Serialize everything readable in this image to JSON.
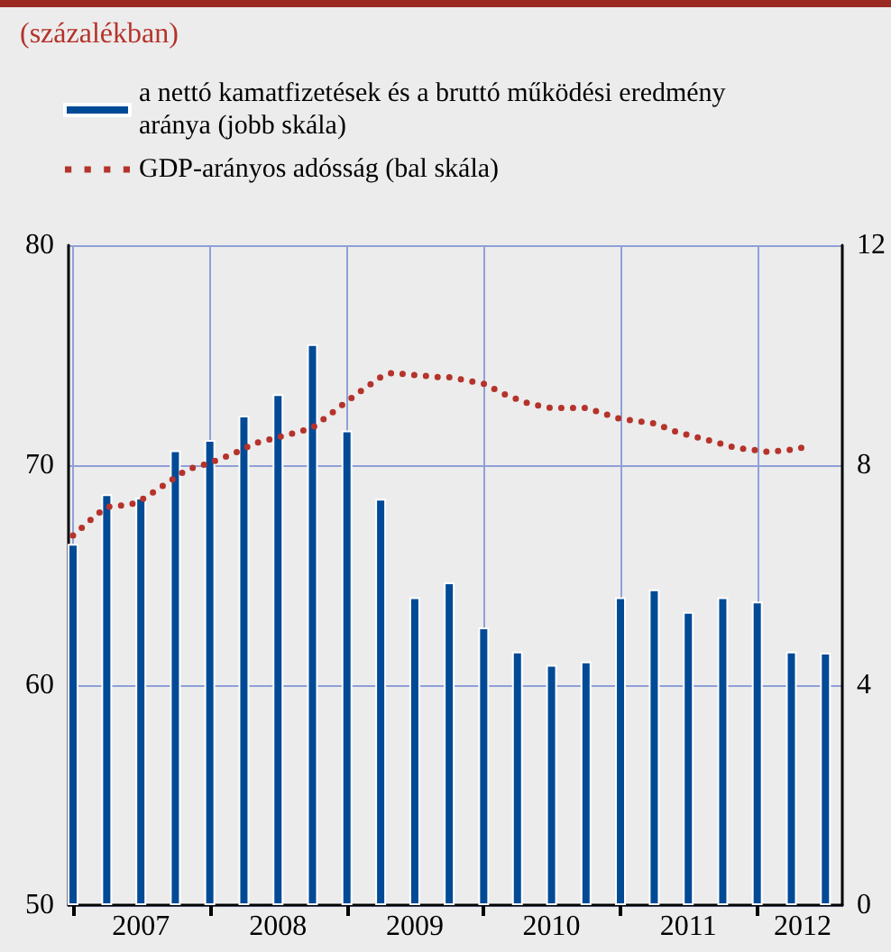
{
  "chart_data": {
    "type": "bar",
    "title": "(százalékban)",
    "x": [
      "2007-01",
      "2007-04",
      "2007-07",
      "2007-10",
      "2008-01",
      "2008-04",
      "2008-07",
      "2008-10",
      "2009-01",
      "2009-04",
      "2009-07",
      "2009-10",
      "2010-01",
      "2010-04",
      "2010-07",
      "2010-10",
      "2011-01",
      "2011-04",
      "2011-07",
      "2011-10",
      "2012-01",
      "2012-04",
      "2012-07"
    ],
    "series": [
      {
        "name": "a nettó kamatfizetések és a bruttó működési eredmény aránya (jobb skála)",
        "axis": "y2",
        "color": "#004a96",
        "values": [
          6.57,
          7.47,
          7.41,
          8.27,
          8.46,
          8.9,
          9.29,
          10.2,
          8.63,
          7.39,
          5.6,
          5.87,
          5.05,
          4.61,
          4.37,
          4.43,
          5.6,
          5.74,
          5.33,
          5.6,
          5.52,
          4.61,
          4.59
        ]
      },
      {
        "name": "GDP-arányos adósság (bal skála)",
        "type": "line",
        "line_style": "dotted",
        "color": "#b5332b",
        "x": [
          "2007-01",
          "2007-03",
          "2007-04",
          "2007-06",
          "2007-07",
          "2007-09",
          "2007-11",
          "2008-01",
          "2008-03",
          "2008-05",
          "2008-08",
          "2008-10",
          "2008-12",
          "2009-02",
          "2009-04",
          "2009-05",
          "2009-09",
          "2009-10",
          "2010-01",
          "2010-03",
          "2010-05",
          "2010-07",
          "2010-10",
          "2011-01",
          "2011-04",
          "2011-06",
          "2011-09",
          "2011-11",
          "2012-02",
          "2012-04",
          "2012-05"
        ],
        "values": [
          66.8,
          67.7,
          68.1,
          68.2,
          68.4,
          69.1,
          69.8,
          70.1,
          70.5,
          71.0,
          71.4,
          71.7,
          72.5,
          73.3,
          74.0,
          74.2,
          74.0,
          74.0,
          73.7,
          73.2,
          72.8,
          72.6,
          72.6,
          72.1,
          71.9,
          71.5,
          71.1,
          70.8,
          70.6,
          70.7,
          70.8
        ]
      }
    ],
    "xlim": [
      "2006-12-20",
      "2012-08-15"
    ],
    "xticks": [
      {
        "value": "2007-01",
        "label": null
      },
      {
        "value": "2007-07",
        "label": "2007"
      },
      {
        "value": "2008-01",
        "label": null
      },
      {
        "value": "2008-07",
        "label": "2008"
      },
      {
        "value": "2009-01",
        "label": null
      },
      {
        "value": "2009-07",
        "label": "2009"
      },
      {
        "value": "2010-01",
        "label": null
      },
      {
        "value": "2010-07",
        "label": "2010"
      },
      {
        "value": "2011-01",
        "label": null
      },
      {
        "value": "2011-07",
        "label": "2011"
      },
      {
        "value": "2012-01",
        "label": null
      },
      {
        "value": "2012-05",
        "label": "2012"
      }
    ],
    "ylim": [
      50,
      80
    ],
    "yticks": [
      50,
      60,
      70,
      80
    ],
    "y2lim": [
      0,
      12
    ],
    "y2ticks": [
      0,
      4,
      8,
      12
    ],
    "grid": true,
    "legend": "top left"
  }
}
